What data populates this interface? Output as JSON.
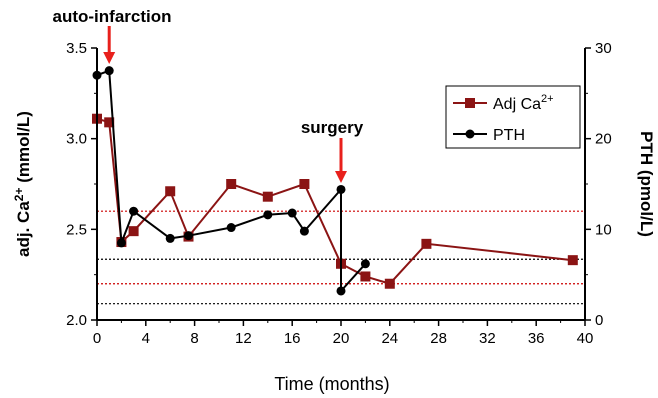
{
  "chart_data": {
    "type": "line",
    "x_axis": {
      "label": "Time (months)",
      "range": [
        0,
        40
      ],
      "ticks": [
        0,
        4,
        8,
        12,
        16,
        20,
        24,
        28,
        32,
        36,
        40
      ]
    },
    "y_left": {
      "label_prefix": "adj. Ca",
      "label_sup": "2+",
      "label_suffix": " (mmol/L)",
      "range": [
        2.0,
        3.5
      ],
      "ticks": [
        "2.0",
        "2.5",
        "3.0",
        "3.5"
      ]
    },
    "y_right": {
      "label": "PTH (pmol/L)",
      "range": [
        0,
        30
      ],
      "ticks": [
        "0",
        "10",
        "20",
        "30"
      ]
    },
    "series": [
      {
        "name": "Adj Ca",
        "name_sup": "2+",
        "axis": "left",
        "color": "#8b1414",
        "marker": "square",
        "segments": [
          [
            [
              0,
              3.11
            ],
            [
              1,
              3.09
            ],
            [
              2,
              2.43
            ],
            [
              3,
              2.49
            ],
            [
              6,
              2.71
            ],
            [
              7.5,
              2.46
            ],
            [
              11,
              2.75
            ],
            [
              14,
              2.68
            ],
            [
              17,
              2.75
            ],
            [
              20,
              2.31
            ],
            [
              22,
              2.24
            ],
            [
              24,
              2.2
            ],
            [
              27,
              2.42
            ],
            [
              39,
              2.33
            ]
          ]
        ]
      },
      {
        "name": "PTH",
        "axis": "right",
        "color": "#000000",
        "marker": "circle",
        "segments": [
          [
            [
              0,
              27
            ],
            [
              1,
              27.5
            ],
            [
              2,
              8.5
            ],
            [
              3,
              12
            ],
            [
              6,
              9
            ],
            [
              7.5,
              9.3
            ],
            [
              11,
              10.2
            ],
            [
              14,
              11.6
            ],
            [
              16,
              11.8
            ],
            [
              17,
              9.8
            ],
            [
              20,
              14.4
            ],
            [
              20,
              3.2
            ]
          ],
          [
            [
              20,
              3.2
            ],
            [
              22,
              6.2
            ]
          ]
        ]
      }
    ],
    "reference_lines": [
      {
        "axis": "left",
        "value": 2.6,
        "color": "#cc0000",
        "style": "dotted"
      },
      {
        "axis": "left",
        "value": 2.2,
        "color": "#cc0000",
        "style": "dotted"
      },
      {
        "axis": "right",
        "value": 6.7,
        "color": "#000000",
        "style": "dotted"
      },
      {
        "axis": "right",
        "value": 1.8,
        "color": "#000000",
        "style": "dotted"
      }
    ],
    "annotations": [
      {
        "text": "auto-infarction",
        "x": 1,
        "arrow_color": "#e8201c"
      },
      {
        "text": "surgery",
        "x": 20,
        "arrow_color": "#e8201c"
      }
    ],
    "legend": {
      "position": "top-right"
    },
    "grid": false
  }
}
